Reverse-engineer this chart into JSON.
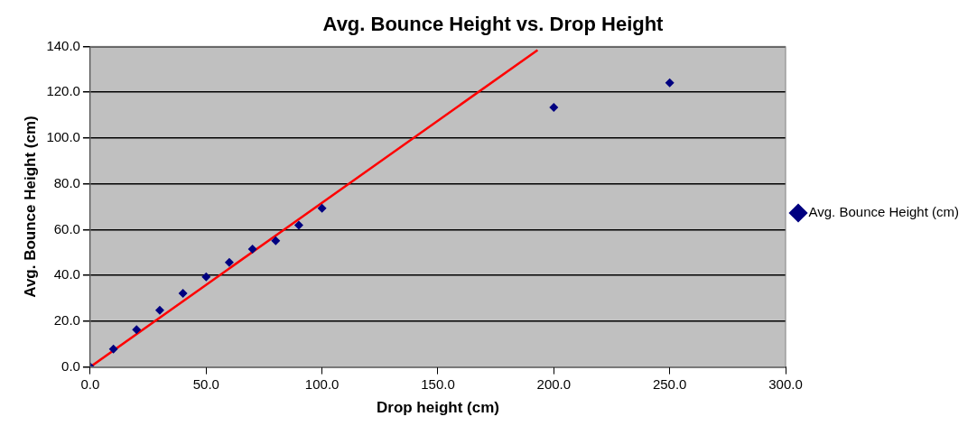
{
  "chart_data": {
    "type": "scatter",
    "title": "Avg. Bounce Height vs. Drop Height",
    "xlabel": "Drop height (cm)",
    "ylabel": "Avg. Bounce Height (cm)",
    "xlim": [
      0,
      300
    ],
    "xticks": [
      {
        "value": 0,
        "label": "0.0"
      },
      {
        "value": 50,
        "label": "50.0"
      },
      {
        "value": 100,
        "label": "100.0"
      },
      {
        "value": 150,
        "label": "150.0"
      },
      {
        "value": 200,
        "label": "200.0"
      },
      {
        "value": 250,
        "label": "250.0"
      },
      {
        "value": 300,
        "label": "300.0"
      }
    ],
    "ylim": [
      0,
      140
    ],
    "yticks": [
      {
        "value": 0,
        "label": "0.0"
      },
      {
        "value": 20,
        "label": "20.0"
      },
      {
        "value": 40,
        "label": "40.0"
      },
      {
        "value": 60,
        "label": "60.0"
      },
      {
        "value": 80,
        "label": "80.0"
      },
      {
        "value": 100,
        "label": "100.0"
      },
      {
        "value": 120,
        "label": "120.0"
      },
      {
        "value": 140,
        "label": "140.0"
      }
    ],
    "grid": "y",
    "legend": "right",
    "series": [
      {
        "name": "Avg. Bounce Height (cm)",
        "color": "#000080",
        "marker": "diamond",
        "x": [
          0,
          10,
          20,
          30,
          40,
          50,
          60,
          70,
          80,
          90,
          100,
          200,
          250
        ],
        "values": [
          0,
          7.8,
          16.3,
          24.8,
          32.2,
          39.4,
          45.7,
          51.5,
          55.1,
          61.9,
          69.3,
          113.4,
          124.1
        ]
      },
      {
        "type": "line",
        "marker": "none",
        "color": "#ff0000",
        "x": [
          0,
          193
        ],
        "values": [
          0,
          138.4
        ]
      }
    ]
  }
}
